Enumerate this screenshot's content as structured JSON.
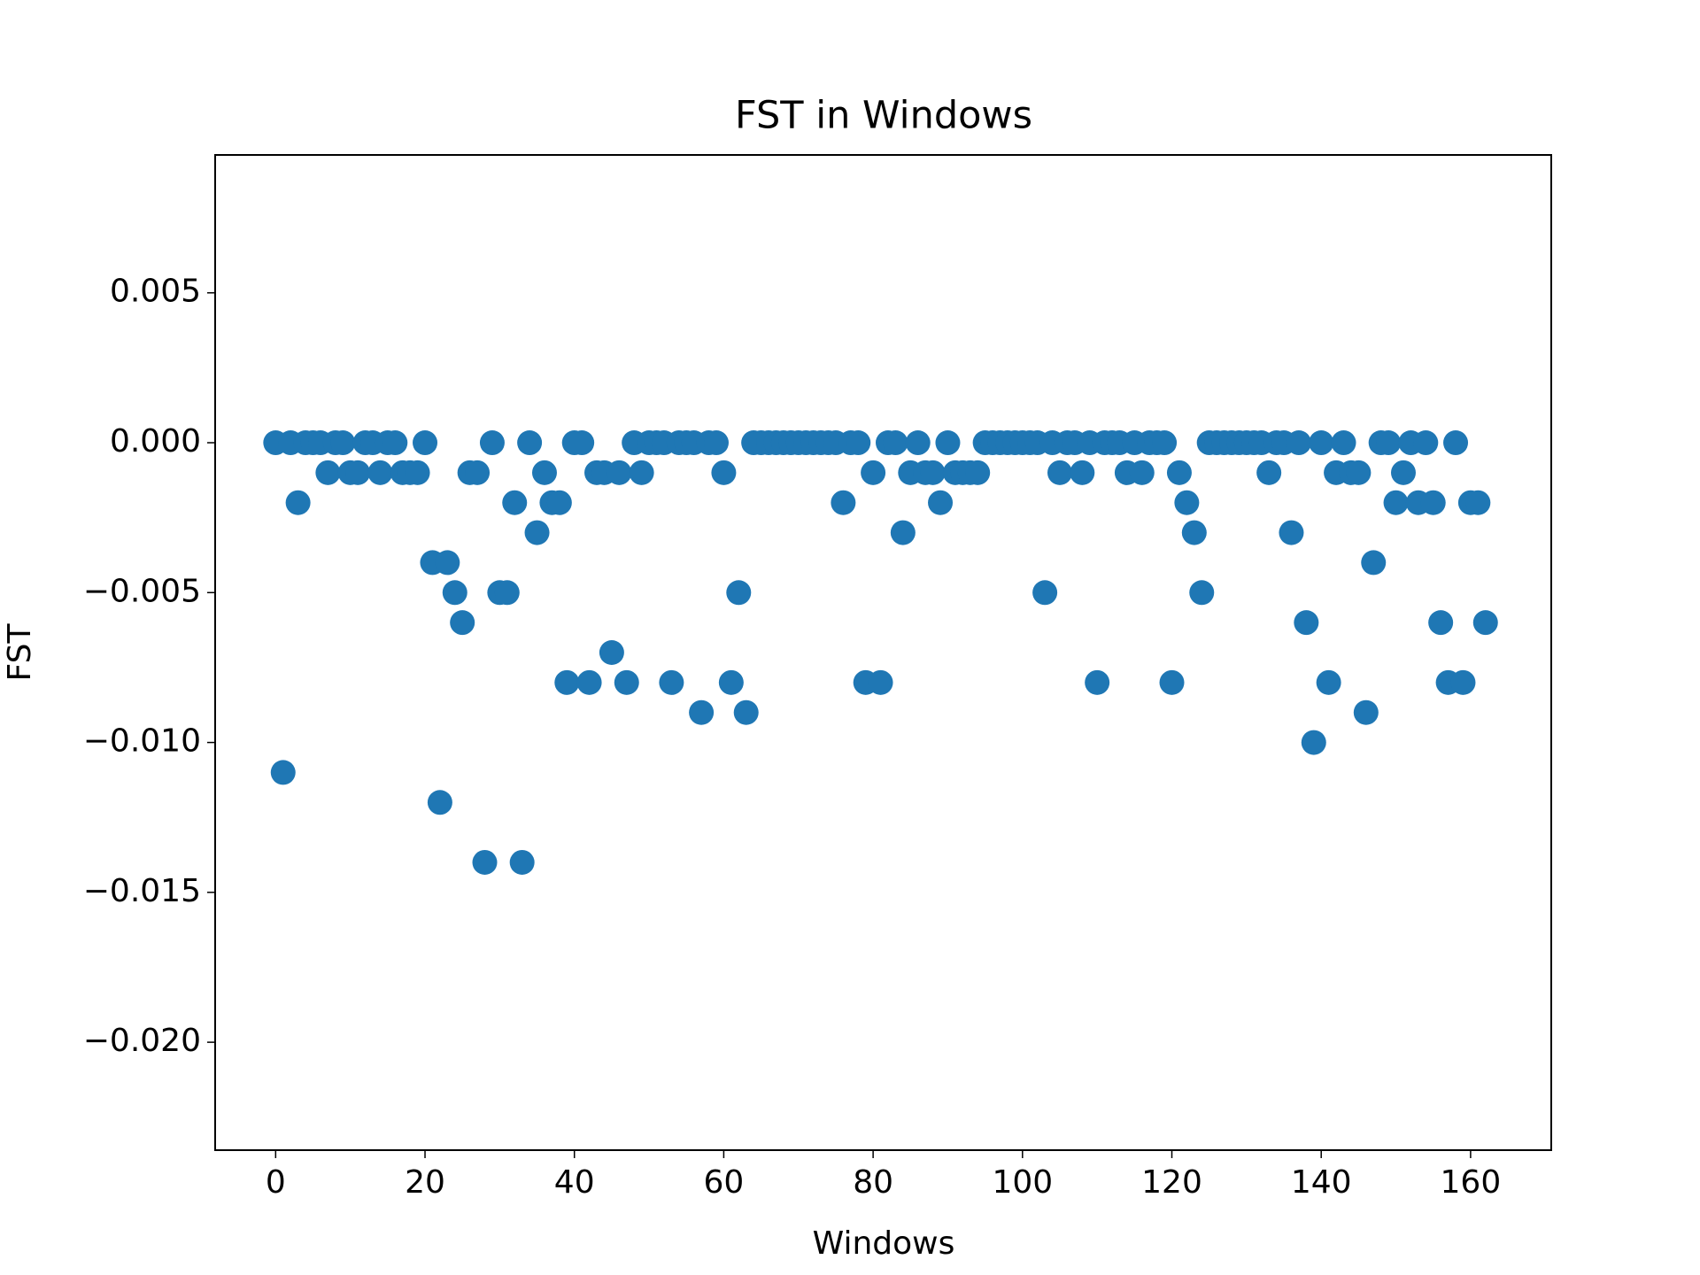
{
  "chart_data": {
    "type": "scatter",
    "title": "FST in Windows",
    "xlabel": "Windows",
    "ylabel": "FST",
    "color": "#1f77b4",
    "x": [
      0,
      1,
      2,
      3,
      4,
      5,
      6,
      7,
      8,
      9,
      10,
      11,
      12,
      13,
      14,
      15,
      16,
      17,
      18,
      19,
      20,
      21,
      22,
      23,
      24,
      25,
      26,
      27,
      28,
      29,
      30,
      31,
      32,
      33,
      34,
      35,
      36,
      37,
      38,
      39,
      40,
      41,
      42,
      43,
      44,
      45,
      46,
      47,
      48,
      49,
      50,
      51,
      52,
      53,
      54,
      55,
      56,
      57,
      58,
      59,
      60,
      61,
      62,
      63,
      64,
      65,
      66,
      67,
      68,
      69,
      70,
      71,
      72,
      73,
      74,
      75,
      76,
      77,
      78,
      79,
      80,
      81,
      82,
      83,
      84,
      85,
      86,
      87,
      88,
      89,
      90,
      91,
      92,
      93,
      94,
      95,
      96,
      97,
      98,
      99,
      100,
      101,
      102,
      103,
      104,
      105,
      106,
      107,
      108,
      109,
      110,
      111,
      112,
      113,
      114,
      115,
      116,
      117,
      118,
      119,
      120,
      121,
      122,
      123,
      124,
      125,
      126,
      127,
      128,
      129,
      130,
      131,
      132,
      133,
      134,
      135,
      136,
      137,
      138,
      139,
      140,
      141,
      142,
      143,
      144,
      145,
      146,
      147,
      148,
      149,
      150,
      151,
      152,
      153,
      154,
      155,
      156,
      157,
      158,
      159,
      160,
      161,
      162
    ],
    "values": [
      0,
      -0.011,
      0,
      -0.002,
      0,
      0,
      0,
      -0.001,
      0,
      0,
      -0.001,
      -0.001,
      0,
      0,
      -0.001,
      0,
      0,
      -0.001,
      -0.001,
      -0.001,
      0,
      -0.004,
      -0.012,
      -0.004,
      -0.005,
      -0.006,
      -0.001,
      -0.001,
      -0.014,
      0,
      -0.005,
      -0.005,
      -0.002,
      -0.014,
      0,
      -0.003,
      -0.001,
      -0.002,
      -0.002,
      -0.008,
      0,
      0,
      -0.008,
      -0.001,
      -0.001,
      -0.007,
      -0.001,
      -0.008,
      0,
      -0.001,
      0,
      0,
      0,
      -0.008,
      0,
      0,
      0,
      -0.009,
      0,
      0,
      -0.001,
      -0.008,
      -0.005,
      -0.009,
      0,
      0,
      0,
      0,
      0,
      0,
      0,
      0,
      0,
      0,
      0,
      0,
      -0.002,
      0,
      0,
      -0.008,
      -0.001,
      -0.008,
      0,
      0,
      -0.003,
      -0.001,
      0,
      -0.001,
      -0.001,
      -0.002,
      0,
      -0.001,
      -0.001,
      -0.001,
      -0.001,
      0,
      0,
      0,
      0,
      0,
      0,
      0,
      0,
      -0.005,
      0,
      -0.001,
      0,
      0,
      -0.001,
      0,
      -0.008,
      0,
      0,
      0,
      -0.001,
      0,
      -0.001,
      0,
      0,
      0,
      -0.008,
      -0.001,
      -0.002,
      -0.003,
      -0.005,
      0,
      0,
      0,
      0,
      0,
      0,
      0,
      0,
      -0.001,
      0,
      0,
      -0.003,
      0,
      -0.006,
      -0.01,
      0,
      -0.008,
      -0.001,
      0,
      -0.001,
      -0.001,
      -0.009,
      -0.004,
      0,
      0,
      -0.002,
      -0.001,
      0,
      -0.002,
      0,
      -0.002,
      -0.006,
      -0.008,
      0,
      -0.008,
      -0.002,
      -0.002,
      -0.006
    ],
    "xlim": [
      -8.1,
      170.8
    ],
    "ylim": [
      -0.0236,
      0.0096
    ],
    "xticks": [
      0,
      20,
      40,
      60,
      80,
      100,
      120,
      140,
      160
    ],
    "yticks": [
      0.005,
      {
        "value": 0,
        "label": "0.000"
      },
      {
        "value": -0.005,
        "label": "−0.005"
      },
      {
        "value": -0.01,
        "label": "−0.010"
      },
      {
        "value": -0.015,
        "label": "−0.015"
      },
      {
        "value": -0.02,
        "label": "−0.020"
      }
    ]
  }
}
